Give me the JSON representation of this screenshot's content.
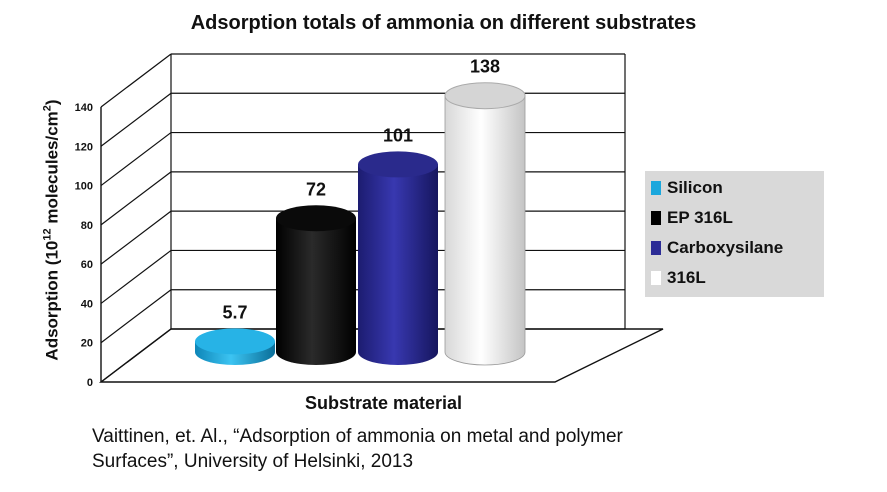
{
  "chart_data": {
    "type": "bar",
    "title": "Adsorption totals of ammonia on different substrates",
    "ylabel_prefix": "Adsorption (10",
    "ylabel_sup": "12",
    "ylabel_mid": " molecules/cm",
    "ylabel_sup2": "2",
    "ylabel_suffix": ")",
    "xlabel": "Substrate material",
    "ylim": [
      0,
      140
    ],
    "yticks": [
      "0",
      "20",
      "40",
      "60",
      "80",
      "100",
      "120",
      "140"
    ],
    "grid": true,
    "legend_position": "right",
    "series": [
      {
        "name": "Silicon",
        "value": 5.7,
        "label": "5.7",
        "color": "#1aa7dd"
      },
      {
        "name": "EP 316L",
        "value": 72,
        "label": "72",
        "color": "#111111"
      },
      {
        "name": "Carboxysilane",
        "value": 101,
        "label": "101",
        "color": "#2c2c96"
      },
      {
        "name": "316L",
        "value": 138,
        "label": "138",
        "color": "#f2f2f2"
      }
    ]
  },
  "caption": {
    "line1": "Vaittinen, et. Al., “Adsorption of ammonia on metal and polymer",
    "line2": "Surfaces”, University of Helsinki, 2013"
  }
}
